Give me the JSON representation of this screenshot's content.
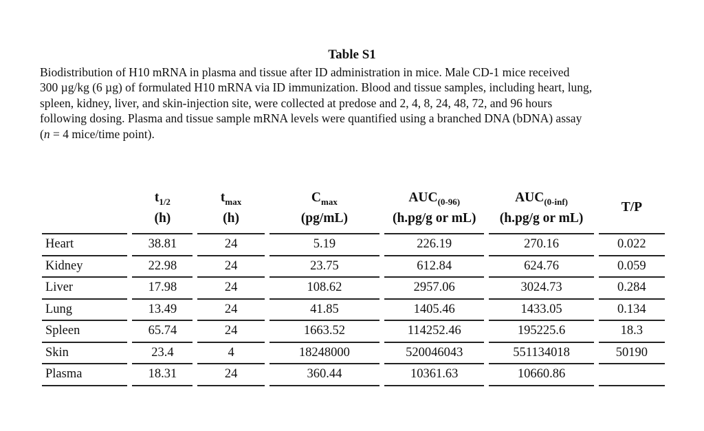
{
  "page": {
    "title": "Table S1"
  },
  "caption": {
    "lines": [
      "Biodistribution of H10 mRNA in plasma and tissue after ID administration in mice. Male CD-1 mice received",
      "300 µg/kg (6 µg) of formulated H10 mRNA via ID immunization. Blood and tissue samples, including heart, lung,",
      "spleen, kidney, liver, and skin-injection site, were collected at predose and 2, 4, 8, 24, 48, 72, and 96 hours",
      "following dosing. Plasma and tissue sample mRNA levels were quantified using a branched DNA (bDNA) assay"
    ],
    "last": {
      "open": "(",
      "n": "n",
      "rest": " = 4 mice/time point)."
    }
  },
  "table": {
    "columns": [
      {
        "key": "organ",
        "symbol": "",
        "sub": "",
        "unit": ""
      },
      {
        "key": "t-half",
        "symbol": "t",
        "sub": "1/2",
        "unit": "(h)"
      },
      {
        "key": "t-max",
        "symbol": "t",
        "sub": "max",
        "unit": "(h)"
      },
      {
        "key": "c-max",
        "symbol": "C",
        "sub": "max",
        "unit": "(pg/mL)"
      },
      {
        "key": "auc-0-96",
        "symbol": "AUC",
        "sub": "(0-96)",
        "unit": "(h.pg/g or mL)"
      },
      {
        "key": "auc-0-inf",
        "symbol": "AUC",
        "sub": "(0-inf)",
        "unit": "(h.pg/g or mL)"
      },
      {
        "key": "t-p",
        "symbol": "T/P",
        "sub": "",
        "unit": ""
      }
    ],
    "rows": [
      {
        "organ": "Heart",
        "values": [
          "38.81",
          "24",
          "5.19",
          "226.19",
          "270.16",
          "0.022"
        ]
      },
      {
        "organ": "Kidney",
        "values": [
          "22.98",
          "24",
          "23.75",
          "612.84",
          "624.76",
          "0.059"
        ]
      },
      {
        "organ": "Liver",
        "values": [
          "17.98",
          "24",
          "108.62",
          "2957.06",
          "3024.73",
          "0.284"
        ]
      },
      {
        "organ": "Lung",
        "values": [
          "13.49",
          "24",
          "41.85",
          "1405.46",
          "1433.05",
          "0.134"
        ]
      },
      {
        "organ": "Spleen",
        "values": [
          "65.74",
          "24",
          "1663.52",
          "114252.46",
          "195225.6",
          "18.3"
        ]
      },
      {
        "organ": "Skin",
        "values": [
          "23.4",
          "4",
          "18248000",
          "520046043",
          "551134018",
          "50190"
        ]
      },
      {
        "organ": "Plasma",
        "values": [
          "18.31",
          "24",
          "360.44",
          "10361.63",
          "10660.86",
          ""
        ]
      }
    ]
  }
}
